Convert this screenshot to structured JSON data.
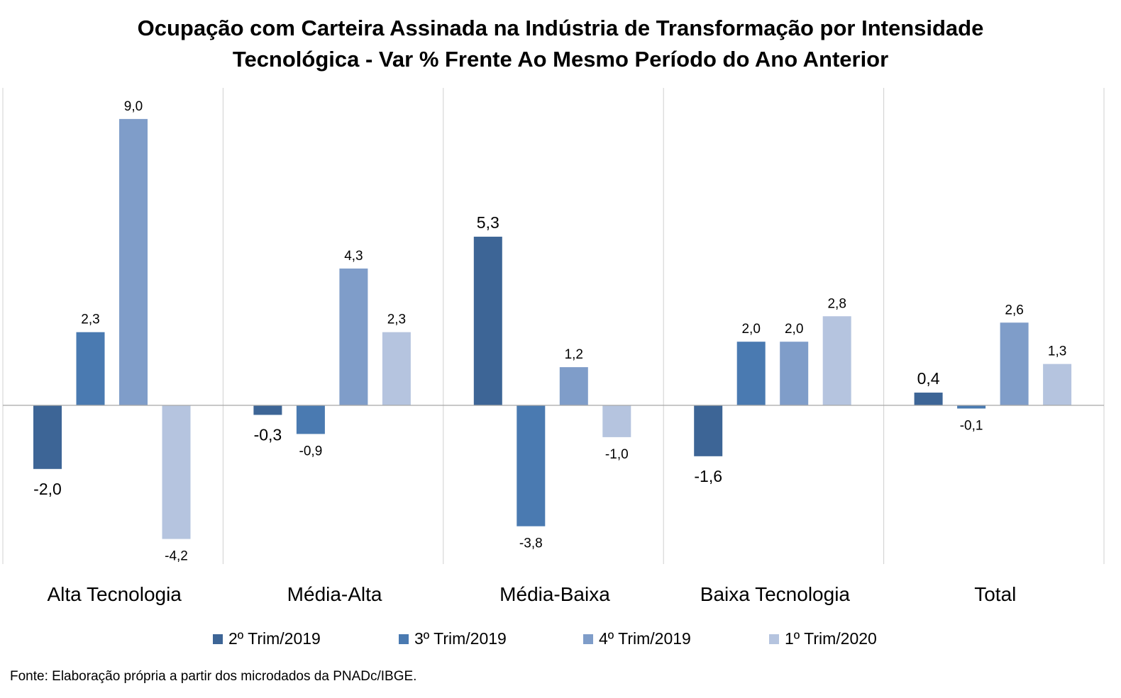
{
  "title_line1": "Ocupação com Carteira Assinada na Indústria de Transformação por Intensidade",
  "title_line2": "Tecnológica - Var % Frente Ao Mesmo Período do Ano Anterior",
  "source": "Fonte: Elaboração própria a partir dos microdados da PNADc/IBGE.",
  "chart_data": {
    "type": "bar",
    "title": "Ocupação com Carteira Assinada na Indústria de Transformação por Intensidade Tecnológica - Var % Frente Ao Mesmo Período do Ano Anterior",
    "categories": [
      "Alta Tecnologia",
      "Média-Alta",
      "Média-Baixa",
      "Baixa Tecnologia",
      "Total"
    ],
    "series": [
      {
        "name": "2º Trim/2019",
        "color": "#3d6596",
        "values": [
          -2.0,
          -0.3,
          5.3,
          -1.6,
          0.4
        ],
        "labels": [
          "-2,0",
          "-0,3",
          "5,3",
          "-1,6",
          "0,4"
        ]
      },
      {
        "name": "3º Trim/2019",
        "color": "#4a7ab1",
        "values": [
          2.3,
          -0.9,
          -3.8,
          2.0,
          -0.1
        ],
        "labels": [
          "2,3",
          "-0,9",
          "-3,8",
          "2,0",
          "-0,1"
        ]
      },
      {
        "name": "4º Trim/2019",
        "color": "#7f9dc9",
        "values": [
          9.0,
          4.3,
          1.2,
          2.0,
          2.6
        ],
        "labels": [
          "9,0",
          "4,3",
          "1,2",
          "2,0",
          "2,6"
        ]
      },
      {
        "name": "1º Trim/2020",
        "color": "#b5c4df",
        "values": [
          -4.2,
          2.3,
          -1.0,
          2.8,
          1.3
        ],
        "labels": [
          "-4,2",
          "2,3",
          "-1,0",
          "2,8",
          "1,3"
        ]
      }
    ],
    "ylim": [
      -5.0,
      10.0
    ],
    "grid": false,
    "legend_position": "bottom"
  }
}
